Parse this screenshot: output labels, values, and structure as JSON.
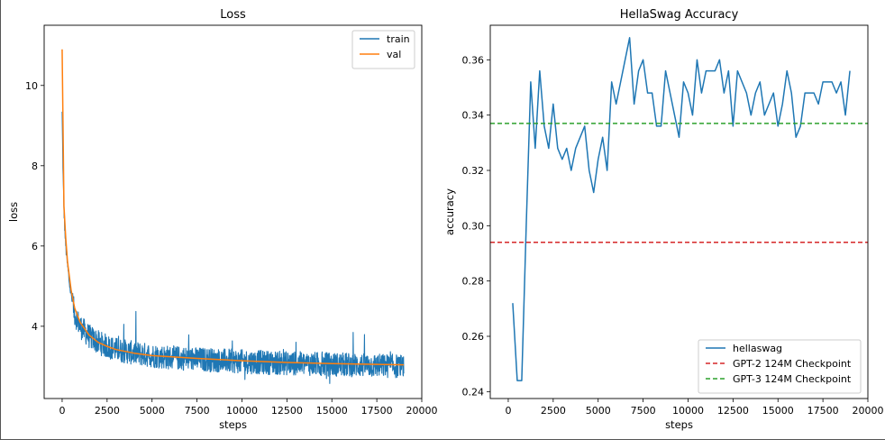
{
  "chart_data": [
    {
      "type": "line",
      "title": "Loss",
      "xlabel": "steps",
      "ylabel": "loss",
      "xlim": [
        -1000,
        20000
      ],
      "ylim": [
        2.2,
        11.5
      ],
      "xticks": [
        0,
        2500,
        5000,
        7500,
        10000,
        12500,
        15000,
        17500,
        20000
      ],
      "yticks": [
        4,
        6,
        8,
        10
      ],
      "legend_position": "upper right",
      "grid": false,
      "series": [
        {
          "name": "train",
          "color": "#1f77b4",
          "x": [
            0,
            50,
            100,
            150,
            200,
            300,
            400,
            500,
            700,
            1000,
            1500,
            2000,
            2500,
            3000,
            4000,
            5000,
            6000,
            7500,
            10000,
            12500,
            15000,
            17500,
            19000
          ],
          "y": [
            9.3,
            7.8,
            6.9,
            6.4,
            6.0,
            5.5,
            5.1,
            4.8,
            4.3,
            4.0,
            3.75,
            3.6,
            3.5,
            3.42,
            3.33,
            3.27,
            3.22,
            3.18,
            3.12,
            3.08,
            3.05,
            3.02,
            3.0
          ],
          "noise_amplitude": 0.3
        },
        {
          "name": "val",
          "color": "#ff7f0e",
          "x": [
            0,
            100,
            200,
            300,
            500,
            700,
            1000,
            1500,
            2000,
            2500,
            3000,
            4000,
            5000,
            7500,
            10000,
            12500,
            15000,
            17500,
            19000
          ],
          "y": [
            10.9,
            7.0,
            6.2,
            5.6,
            4.9,
            4.45,
            4.1,
            3.78,
            3.6,
            3.5,
            3.42,
            3.33,
            3.27,
            3.2,
            3.14,
            3.1,
            3.07,
            3.05,
            3.04
          ]
        }
      ]
    },
    {
      "type": "line",
      "title": "HellaSwag Accuracy",
      "xlabel": "steps",
      "ylabel": "accuracy",
      "xlim": [
        -1000,
        20000
      ],
      "ylim": [
        0.2375,
        0.3725
      ],
      "xticks": [
        0,
        2500,
        5000,
        7500,
        10000,
        12500,
        15000,
        17500,
        20000
      ],
      "yticks": [
        0.24,
        0.26,
        0.28,
        0.3,
        0.32,
        0.34,
        0.36
      ],
      "ytick_labels": [
        "0.24",
        "0.26",
        "0.28",
        "0.30",
        "0.32",
        "0.34",
        "0.36"
      ],
      "legend_position": "lower right",
      "grid": false,
      "series": [
        {
          "name": "hellaswag",
          "color": "#1f77b4",
          "style": "solid",
          "x": [
            250,
            500,
            750,
            1000,
            1250,
            1500,
            1750,
            2000,
            2250,
            2500,
            2750,
            3000,
            3250,
            3500,
            3750,
            4000,
            4250,
            4500,
            4750,
            5000,
            5250,
            5500,
            5750,
            6000,
            6250,
            6500,
            6750,
            7000,
            7250,
            7500,
            7750,
            8000,
            8250,
            8500,
            8750,
            9000,
            9250,
            9500,
            9750,
            10000,
            10250,
            10500,
            10750,
            11000,
            11250,
            11500,
            11750,
            12000,
            12250,
            12500,
            12750,
            13000,
            13250,
            13500,
            13750,
            14000,
            14250,
            14500,
            14750,
            15000,
            15250,
            15500,
            15750,
            16000,
            16250,
            16500,
            16750,
            17000,
            17250,
            17500,
            17750,
            18000,
            18250,
            18500,
            18750,
            19000
          ],
          "y": [
            0.272,
            0.244,
            0.244,
            0.3,
            0.352,
            0.328,
            0.356,
            0.336,
            0.328,
            0.344,
            0.328,
            0.324,
            0.328,
            0.32,
            0.328,
            0.332,
            0.336,
            0.32,
            0.312,
            0.324,
            0.332,
            0.32,
            0.352,
            0.344,
            0.352,
            0.36,
            0.368,
            0.344,
            0.356,
            0.36,
            0.348,
            0.348,
            0.336,
            0.336,
            0.356,
            0.348,
            0.34,
            0.332,
            0.352,
            0.348,
            0.34,
            0.36,
            0.348,
            0.356,
            0.356,
            0.356,
            0.36,
            0.348,
            0.356,
            0.336,
            0.356,
            0.352,
            0.348,
            0.34,
            0.348,
            0.352,
            0.34,
            0.344,
            0.348,
            0.336,
            0.344,
            0.356,
            0.348,
            0.332,
            0.336,
            0.348,
            0.348,
            0.348,
            0.344,
            0.352,
            0.352,
            0.352,
            0.348,
            0.352,
            0.34,
            0.356
          ]
        },
        {
          "name": "GPT-2 124M Checkpoint",
          "color": "#d62728",
          "style": "dashed",
          "y_constant": 0.294
        },
        {
          "name": "GPT-3 124M Checkpoint",
          "color": "#2ca02c",
          "style": "dashed",
          "y_constant": 0.337
        }
      ]
    }
  ]
}
